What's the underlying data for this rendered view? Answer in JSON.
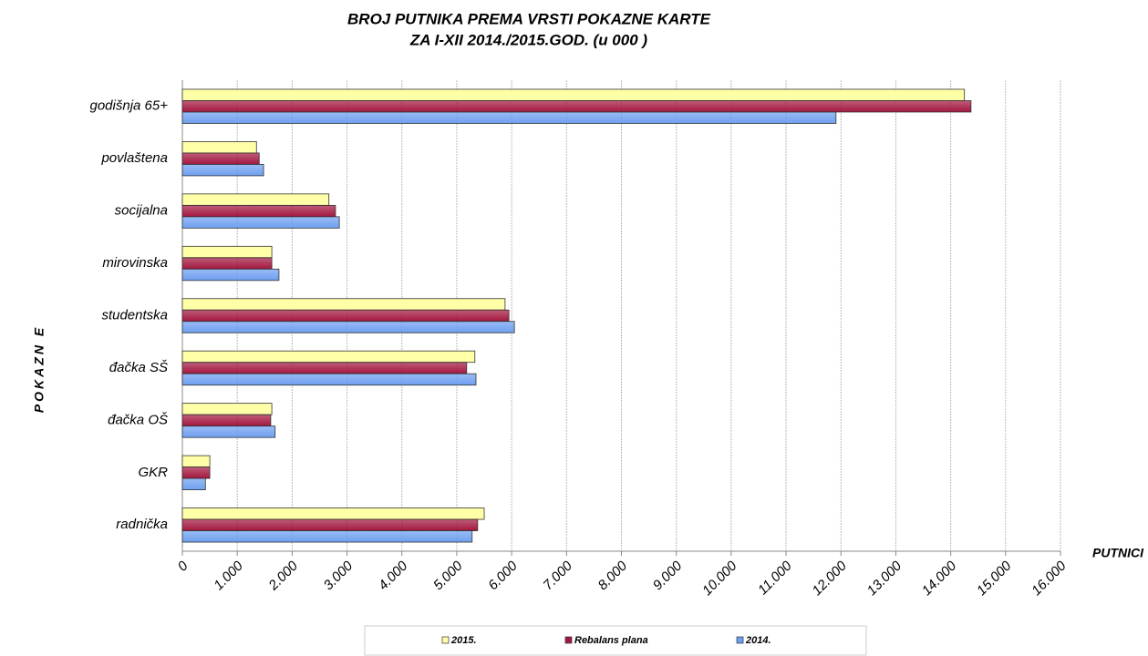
{
  "chart_data": {
    "type": "hbar",
    "title": [
      "BROJ PUTNIKA PREMA VRSTI POKAZNE KARTE",
      "ZA  I-XII 2014./2015.GOD. (u 000 )"
    ],
    "x_label": "PUTNICI",
    "y_label": "POKAZN E",
    "categories": [
      "godišnja 65+",
      "povlaštena",
      "socijalna",
      "mirovinska",
      "studentska",
      "đačka SŠ",
      "đačka OŠ",
      "GKR",
      "radnička"
    ],
    "series": [
      {
        "name": "2015.",
        "color": "#ffffa8",
        "values": [
          14250,
          1350,
          2670,
          1630,
          5880,
          5330,
          1630,
          500,
          5500
        ]
      },
      {
        "name": "Rebalans plana",
        "color": "#a3173f",
        "values": [
          14370,
          1400,
          2790,
          1630,
          5950,
          5180,
          1610,
          500,
          5380
        ]
      },
      {
        "name": "2014.",
        "color": "#6e9ff0",
        "values": [
          11910,
          1480,
          2860,
          1760,
          6050,
          5350,
          1690,
          420,
          5280
        ]
      }
    ],
    "xlim": [
      0,
      16000
    ],
    "xticks": [
      0,
      {
        "value": 1000,
        "label": "1.000"
      },
      {
        "value": 2000,
        "label": "2.000"
      },
      {
        "value": 3000,
        "label": "3.000"
      },
      {
        "value": 4000,
        "label": "4.000"
      },
      {
        "value": 5000,
        "label": "5.000"
      },
      {
        "value": 6000,
        "label": "6.000"
      },
      {
        "value": 7000,
        "label": "7.000"
      },
      {
        "value": 8000,
        "label": "8.000"
      },
      {
        "value": 9000,
        "label": "9.000"
      },
      {
        "value": 10000,
        "label": "10.000"
      },
      {
        "value": 11000,
        "label": "11.000"
      },
      {
        "value": 12000,
        "label": "12.000"
      },
      {
        "value": 13000,
        "label": "13.000"
      },
      {
        "value": 14000,
        "label": "14.000"
      },
      {
        "value": 15000,
        "label": "15.000"
      },
      {
        "value": 16000,
        "label": "16.000"
      }
    ],
    "grid": true
  }
}
